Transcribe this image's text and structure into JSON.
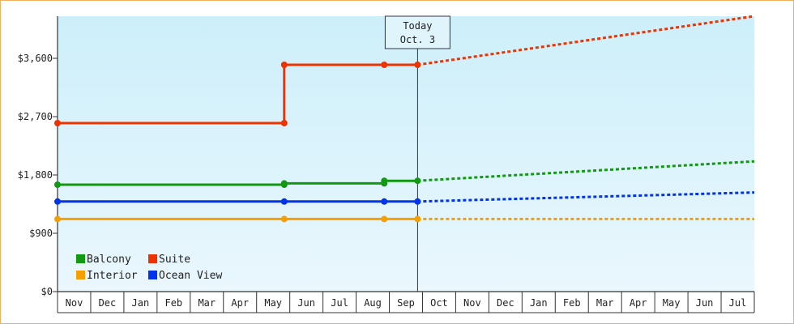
{
  "chart_data": {
    "type": "line",
    "title": "",
    "xlabel": "",
    "ylabel": "",
    "ylim": [
      0,
      4250
    ],
    "yticks": [
      0,
      900,
      1800,
      2700,
      3600
    ],
    "ytick_labels": [
      "$0",
      "$900",
      "$1,800",
      "$2,700",
      "$3,600"
    ],
    "month_labels": [
      "Nov",
      "Dec",
      "Jan",
      "Feb",
      "Mar",
      "Apr",
      "May",
      "Jun",
      "Jul",
      "Aug",
      "Sep",
      "Oct",
      "Nov",
      "Dec",
      "Jan",
      "Feb",
      "Mar",
      "Apr",
      "May",
      "Jun",
      "Jul"
    ],
    "today_marker": {
      "line1": "Today",
      "line2": "Oct. 3",
      "x": 10.8
    },
    "grid": false,
    "legend_placement": "bottom-left",
    "colors": {
      "Balcony": "#119911",
      "Suite": "#ee3300",
      "Interior": "#f5a000",
      "Ocean View": "#0033ee"
    },
    "series": [
      {
        "name": "Suite",
        "points": [
          [
            0,
            2600
          ],
          [
            6.8,
            2600
          ],
          [
            6.8,
            3500
          ],
          [
            9.8,
            3500
          ],
          [
            10.8,
            3500
          ]
        ],
        "forecast": [
          [
            10.8,
            3500
          ],
          [
            20.9,
            4250
          ]
        ]
      },
      {
        "name": "Balcony",
        "points": [
          [
            0,
            1650
          ],
          [
            6.8,
            1650
          ],
          [
            6.8,
            1670
          ],
          [
            9.8,
            1670
          ],
          [
            9.8,
            1710
          ],
          [
            10.8,
            1710
          ]
        ],
        "forecast": [
          [
            10.8,
            1710
          ],
          [
            20.9,
            2010
          ]
        ]
      },
      {
        "name": "Ocean View",
        "points": [
          [
            0,
            1390
          ],
          [
            6.8,
            1390
          ],
          [
            9.8,
            1390
          ],
          [
            10.8,
            1390
          ]
        ],
        "forecast": [
          [
            10.8,
            1390
          ],
          [
            20.9,
            1530
          ]
        ]
      },
      {
        "name": "Interior",
        "points": [
          [
            0,
            1120
          ],
          [
            6.8,
            1120
          ],
          [
            9.8,
            1120
          ],
          [
            10.8,
            1120
          ]
        ],
        "forecast": [
          [
            10.8,
            1120
          ],
          [
            20.9,
            1120
          ]
        ]
      }
    ]
  }
}
